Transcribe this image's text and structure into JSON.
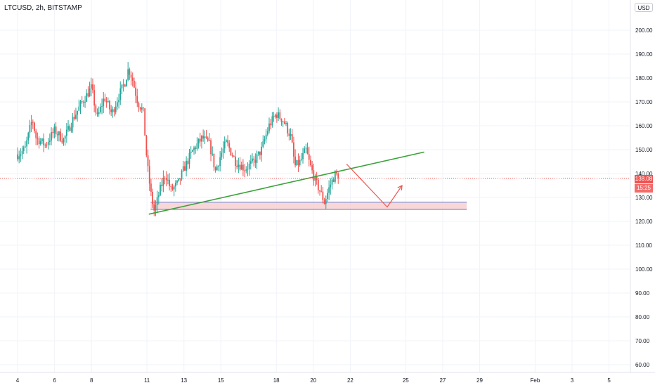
{
  "header": {
    "title": "LTCUSD, 2h, BITSTAMP",
    "currency": "USD"
  },
  "price_readout": {
    "last": "138.08",
    "countdown": "15:25"
  },
  "colors": {
    "up": "#26a69a",
    "down": "#ef5350",
    "trendline": "#3aa23a",
    "zone_fill": "#f8c9c9",
    "zone_border": "#5b7bd6",
    "projection": "#ef5350",
    "grid": "#f0f3fa",
    "axis_text": "#131722",
    "price_line": "#ef5350"
  },
  "chart_data": {
    "type": "candlestick",
    "title": "LTCUSD, 2h, BITSTAMP",
    "xlabel": "",
    "ylabel": "",
    "x_ticks": [
      "4",
      "6",
      "8",
      "11",
      "13",
      "15",
      "18",
      "20",
      "22",
      "25",
      "27",
      "29",
      "Feb",
      "3",
      "5"
    ],
    "y_ticks": [
      "60.00",
      "70.00",
      "80.00",
      "90.00",
      "100.00",
      "110.00",
      "120.00",
      "130.00",
      "140.00",
      "150.00",
      "160.00",
      "170.00",
      "180.00",
      "190.00",
      "200.00"
    ],
    "ylim": [
      57,
      212
    ],
    "current_price": 138.08,
    "price_path": [
      {
        "t": 0.0,
        "p": 148
      },
      {
        "t": 0.4,
        "p": 150
      },
      {
        "t": 0.8,
        "p": 163
      },
      {
        "t": 1.0,
        "p": 155
      },
      {
        "t": 1.5,
        "p": 152
      },
      {
        "t": 2.0,
        "p": 158
      },
      {
        "t": 2.5,
        "p": 154
      },
      {
        "t": 3.0,
        "p": 163
      },
      {
        "t": 3.5,
        "p": 170
      },
      {
        "t": 4.0,
        "p": 176
      },
      {
        "t": 4.3,
        "p": 163
      },
      {
        "t": 4.7,
        "p": 172
      },
      {
        "t": 5.1,
        "p": 165
      },
      {
        "t": 5.5,
        "p": 173
      },
      {
        "t": 5.8,
        "p": 178
      },
      {
        "t": 6.0,
        "p": 184
      },
      {
        "t": 6.2,
        "p": 180
      },
      {
        "t": 6.5,
        "p": 170
      },
      {
        "t": 6.8,
        "p": 166
      },
      {
        "t": 7.0,
        "p": 145
      },
      {
        "t": 7.2,
        "p": 132
      },
      {
        "t": 7.4,
        "p": 124
      },
      {
        "t": 7.7,
        "p": 133
      },
      {
        "t": 8.0,
        "p": 140
      },
      {
        "t": 8.3,
        "p": 133
      },
      {
        "t": 8.7,
        "p": 136
      },
      {
        "t": 9.0,
        "p": 142
      },
      {
        "t": 9.5,
        "p": 150
      },
      {
        "t": 10.0,
        "p": 155
      },
      {
        "t": 10.4,
        "p": 152
      },
      {
        "t": 10.7,
        "p": 141
      },
      {
        "t": 11.0,
        "p": 148
      },
      {
        "t": 11.3,
        "p": 153
      },
      {
        "t": 11.8,
        "p": 145
      },
      {
        "t": 12.3,
        "p": 142
      },
      {
        "t": 12.8,
        "p": 145
      },
      {
        "t": 13.2,
        "p": 150
      },
      {
        "t": 13.6,
        "p": 160
      },
      {
        "t": 14.0,
        "p": 165
      },
      {
        "t": 14.4,
        "p": 162
      },
      {
        "t": 14.8,
        "p": 155
      },
      {
        "t": 15.0,
        "p": 143
      },
      {
        "t": 15.3,
        "p": 145
      },
      {
        "t": 15.6,
        "p": 150
      },
      {
        "t": 15.8,
        "p": 144
      },
      {
        "t": 16.1,
        "p": 137
      },
      {
        "t": 16.4,
        "p": 132
      },
      {
        "t": 16.6,
        "p": 128
      },
      {
        "t": 16.9,
        "p": 135
      },
      {
        "t": 17.2,
        "p": 140
      },
      {
        "t": 17.4,
        "p": 138.08
      }
    ],
    "annotations": {
      "trendline": {
        "from": {
          "t": 7.1,
          "p": 123
        },
        "to": {
          "t": 22.0,
          "p": 149
        }
      },
      "support_zone": {
        "t0": 7.2,
        "t1": 24.3,
        "p_low": 125,
        "p_high": 128
      },
      "projection": [
        {
          "t": 17.8,
          "p": 144
        },
        {
          "t": 20.0,
          "p": 126
        },
        {
          "t": 20.8,
          "p": 135
        }
      ]
    }
  }
}
